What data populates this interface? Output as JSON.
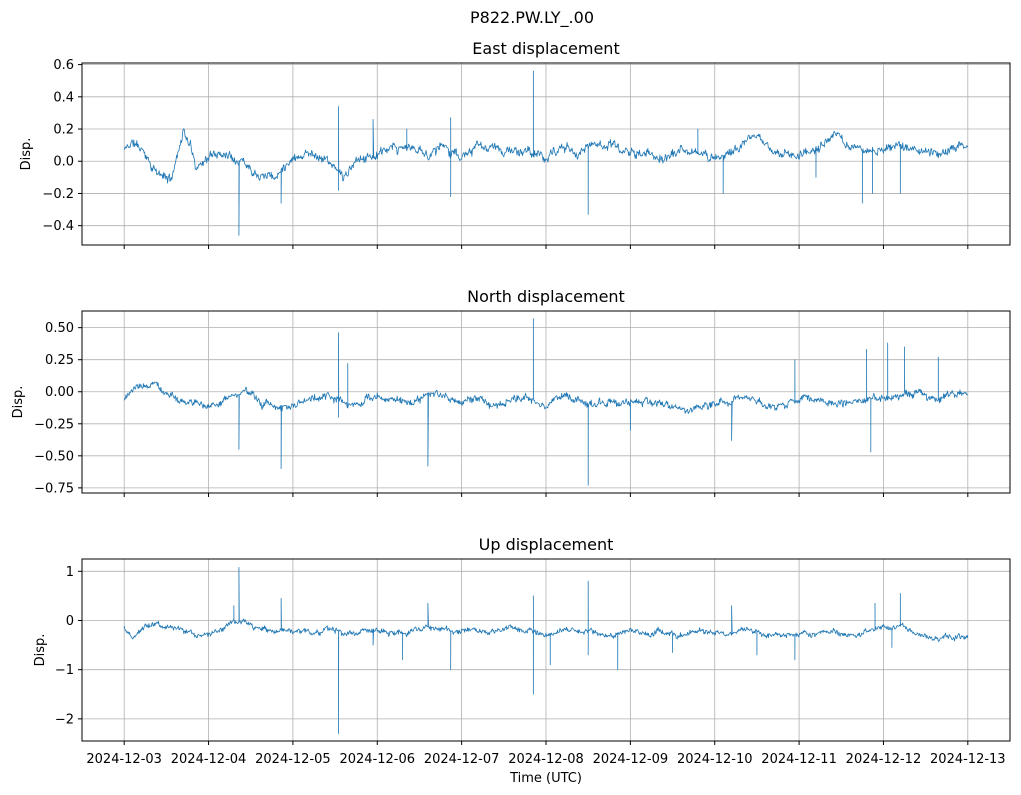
{
  "figure": {
    "suptitle": "P822.PW.LY_.00",
    "xlabel": "Time (UTC)"
  },
  "chart_data": [
    {
      "type": "line",
      "title": "East displacement",
      "ylabel": "Disp.",
      "xlim": [
        "2024-12-02T12:00:00",
        "2024-12-13T12:00:00"
      ],
      "x_range": [
        "2024-12-03T00:00:00",
        "2024-12-13T00:00:00"
      ],
      "ylim": [
        -0.52,
        0.61
      ],
      "yticks": [
        -0.4,
        -0.2,
        0.0,
        0.2,
        0.4,
        0.6
      ],
      "ytick_labels": [
        "−0.4",
        "−0.2",
        "0.0",
        "0.2",
        "0.4",
        "0.6"
      ],
      "xticks": [
        "2024-12-03",
        "2024-12-04",
        "2024-12-05",
        "2024-12-06",
        "2024-12-07",
        "2024-12-08",
        "2024-12-09",
        "2024-12-10",
        "2024-12-11",
        "2024-12-12",
        "2024-12-13"
      ],
      "show_x_tick_labels": false,
      "grid": true,
      "color": "#1f77b4",
      "series": [
        {
          "baseline": [
            [
              0.0,
              0.07
            ],
            [
              0.1,
              0.12
            ],
            [
              0.25,
              0.05
            ],
            [
              0.4,
              -0.08
            ],
            [
              0.55,
              -0.12
            ],
            [
              0.62,
              0.02
            ],
            [
              0.7,
              0.2
            ],
            [
              0.78,
              0.1
            ],
            [
              0.85,
              -0.02
            ],
            [
              1.0,
              0.03
            ],
            [
              1.2,
              0.06
            ],
            [
              1.4,
              0.02
            ],
            [
              1.55,
              -0.05
            ],
            [
              1.7,
              -0.06
            ],
            [
              1.8,
              -0.1
            ],
            [
              1.9,
              -0.02
            ],
            [
              2.0,
              0.04
            ],
            [
              2.2,
              0.06
            ],
            [
              2.4,
              0.02
            ],
            [
              2.5,
              -0.05
            ],
            [
              2.6,
              -0.1
            ],
            [
              2.7,
              -0.05
            ],
            [
              2.8,
              0.02
            ],
            [
              3.0,
              0.04
            ],
            [
              3.2,
              0.06
            ],
            [
              3.4,
              0.08
            ],
            [
              3.6,
              0.04
            ],
            [
              3.75,
              0.1
            ],
            [
              3.9,
              0.07
            ],
            [
              4.0,
              0.02
            ],
            [
              4.2,
              0.08
            ],
            [
              4.4,
              0.07
            ],
            [
              4.6,
              0.06
            ],
            [
              4.8,
              0.05
            ],
            [
              5.0,
              0.02
            ],
            [
              5.2,
              0.08
            ],
            [
              5.4,
              0.06
            ],
            [
              5.6,
              0.12
            ],
            [
              5.8,
              0.1
            ],
            [
              6.0,
              0.05
            ],
            [
              6.2,
              0.04
            ],
            [
              6.4,
              0.02
            ],
            [
              6.6,
              0.06
            ],
            [
              6.8,
              0.04
            ],
            [
              7.0,
              0.03
            ],
            [
              7.2,
              0.06
            ],
            [
              7.4,
              0.14
            ],
            [
              7.6,
              0.1
            ],
            [
              7.8,
              0.04
            ],
            [
              8.0,
              0.05
            ],
            [
              8.2,
              0.08
            ],
            [
              8.4,
              0.14
            ],
            [
              8.6,
              0.1
            ],
            [
              8.8,
              0.07
            ],
            [
              9.0,
              0.06
            ],
            [
              9.2,
              0.1
            ],
            [
              9.4,
              0.06
            ],
            [
              9.6,
              0.04
            ],
            [
              9.8,
              0.08
            ],
            [
              10.0,
              0.12
            ]
          ],
          "spikes": [
            [
              1.36,
              -0.46
            ],
            [
              1.36,
              -0.25
            ],
            [
              1.86,
              -0.26
            ],
            [
              2.54,
              0.34
            ],
            [
              2.54,
              -0.18
            ],
            [
              2.95,
              0.26
            ],
            [
              3.35,
              0.2
            ],
            [
              3.87,
              0.27
            ],
            [
              3.87,
              -0.22
            ],
            [
              4.85,
              0.56
            ],
            [
              4.85,
              0.3
            ],
            [
              5.5,
              -0.33
            ],
            [
              6.8,
              0.2
            ],
            [
              7.1,
              -0.2
            ],
            [
              8.2,
              -0.1
            ],
            [
              8.75,
              -0.26
            ],
            [
              8.87,
              -0.2
            ],
            [
              9.2,
              -0.2
            ]
          ],
          "noise": 0.025,
          "seed": 11
        }
      ]
    },
    {
      "type": "line",
      "title": "North displacement",
      "ylabel": "Disp.",
      "xlim": [
        "2024-12-02T12:00:00",
        "2024-12-13T12:00:00"
      ],
      "x_range": [
        "2024-12-03T00:00:00",
        "2024-12-13T00:00:00"
      ],
      "ylim": [
        -0.79,
        0.63
      ],
      "yticks": [
        -0.75,
        -0.5,
        -0.25,
        0.0,
        0.25,
        0.5
      ],
      "ytick_labels": [
        "−0.75",
        "−0.50",
        "−0.25",
        "0.00",
        "0.25",
        "0.50"
      ],
      "xticks": [
        "2024-12-03",
        "2024-12-04",
        "2024-12-05",
        "2024-12-06",
        "2024-12-07",
        "2024-12-08",
        "2024-12-09",
        "2024-12-10",
        "2024-12-11",
        "2024-12-12",
        "2024-12-13"
      ],
      "show_x_tick_labels": false,
      "grid": true,
      "color": "#1f77b4",
      "series": [
        {
          "baseline": [
            [
              0.0,
              -0.04
            ],
            [
              0.2,
              0.03
            ],
            [
              0.4,
              0.06
            ],
            [
              0.6,
              -0.05
            ],
            [
              0.8,
              -0.1
            ],
            [
              1.0,
              -0.1
            ],
            [
              1.2,
              -0.05
            ],
            [
              1.4,
              0.0
            ],
            [
              1.6,
              -0.08
            ],
            [
              1.8,
              -0.12
            ],
            [
              2.0,
              -0.1
            ],
            [
              2.2,
              -0.05
            ],
            [
              2.4,
              -0.02
            ],
            [
              2.6,
              -0.1
            ],
            [
              2.8,
              -0.08
            ],
            [
              3.0,
              -0.06
            ],
            [
              3.2,
              -0.04
            ],
            [
              3.4,
              -0.08
            ],
            [
              3.6,
              -0.05
            ],
            [
              3.8,
              -0.02
            ],
            [
              4.0,
              -0.08
            ],
            [
              4.2,
              -0.06
            ],
            [
              4.4,
              -0.1
            ],
            [
              4.6,
              -0.04
            ],
            [
              4.8,
              -0.05
            ],
            [
              5.0,
              -0.08
            ],
            [
              5.2,
              -0.04
            ],
            [
              5.4,
              -0.08
            ],
            [
              5.6,
              -0.1
            ],
            [
              5.8,
              -0.05
            ],
            [
              6.0,
              -0.08
            ],
            [
              6.2,
              -0.06
            ],
            [
              6.4,
              -0.1
            ],
            [
              6.6,
              -0.14
            ],
            [
              6.8,
              -0.12
            ],
            [
              7.0,
              -0.08
            ],
            [
              7.2,
              -0.06
            ],
            [
              7.4,
              -0.04
            ],
            [
              7.6,
              -0.1
            ],
            [
              7.8,
              -0.12
            ],
            [
              8.0,
              -0.06
            ],
            [
              8.2,
              -0.04
            ],
            [
              8.4,
              -0.08
            ],
            [
              8.6,
              -0.1
            ],
            [
              8.8,
              -0.06
            ],
            [
              9.0,
              -0.04
            ],
            [
              9.2,
              -0.02
            ],
            [
              9.4,
              0.0
            ],
            [
              9.6,
              -0.06
            ],
            [
              9.8,
              -0.04
            ],
            [
              10.0,
              -0.02
            ]
          ],
          "spikes": [
            [
              1.36,
              -0.45
            ],
            [
              1.86,
              -0.6
            ],
            [
              2.54,
              0.46
            ],
            [
              2.54,
              -0.2
            ],
            [
              2.65,
              0.22
            ],
            [
              3.6,
              -0.58
            ],
            [
              3.6,
              -0.2
            ],
            [
              4.85,
              0.57
            ],
            [
              4.85,
              0.35
            ],
            [
              5.5,
              -0.73
            ],
            [
              5.5,
              -0.25
            ],
            [
              6.0,
              -0.3
            ],
            [
              7.2,
              -0.38
            ],
            [
              7.95,
              0.25
            ],
            [
              8.8,
              0.33
            ],
            [
              8.85,
              -0.47
            ],
            [
              9.05,
              0.38
            ],
            [
              9.25,
              0.35
            ],
            [
              9.65,
              0.27
            ]
          ],
          "noise": 0.025,
          "seed": 23
        }
      ]
    },
    {
      "type": "line",
      "title": "Up displacement",
      "ylabel": "Disp.",
      "xlim": [
        "2024-12-02T12:00:00",
        "2024-12-13T12:00:00"
      ],
      "x_range": [
        "2024-12-03T00:00:00",
        "2024-12-13T00:00:00"
      ],
      "ylim": [
        -2.45,
        1.25
      ],
      "yticks": [
        -2,
        -1,
        0,
        1
      ],
      "ytick_labels": [
        "−2",
        "−1",
        "0",
        "1"
      ],
      "xticks": [
        "2024-12-03",
        "2024-12-04",
        "2024-12-05",
        "2024-12-06",
        "2024-12-07",
        "2024-12-08",
        "2024-12-09",
        "2024-12-10",
        "2024-12-11",
        "2024-12-12",
        "2024-12-13"
      ],
      "xtick_labels": [
        "2024-12-03",
        "2024-12-04",
        "2024-12-05",
        "2024-12-06",
        "2024-12-07",
        "2024-12-08",
        "2024-12-09",
        "2024-12-10",
        "2024-12-11",
        "2024-12-12",
        "2024-12-13"
      ],
      "show_x_tick_labels": true,
      "grid": true,
      "color": "#1f77b4",
      "series": [
        {
          "baseline": [
            [
              0.0,
              -0.15
            ],
            [
              0.1,
              -0.35
            ],
            [
              0.25,
              -0.1
            ],
            [
              0.4,
              0.0
            ],
            [
              0.6,
              -0.15
            ],
            [
              0.8,
              -0.3
            ],
            [
              1.0,
              -0.25
            ],
            [
              1.2,
              -0.15
            ],
            [
              1.4,
              -0.05
            ],
            [
              1.6,
              -0.2
            ],
            [
              1.8,
              -0.25
            ],
            [
              2.0,
              -0.2
            ],
            [
              2.2,
              -0.25
            ],
            [
              2.4,
              -0.15
            ],
            [
              2.6,
              -0.25
            ],
            [
              2.8,
              -0.2
            ],
            [
              3.0,
              -0.2
            ],
            [
              3.2,
              -0.25
            ],
            [
              3.4,
              -0.2
            ],
            [
              3.6,
              -0.15
            ],
            [
              3.8,
              -0.2
            ],
            [
              4.0,
              -0.25
            ],
            [
              4.2,
              -0.2
            ],
            [
              4.4,
              -0.22
            ],
            [
              4.6,
              -0.15
            ],
            [
              4.8,
              -0.2
            ],
            [
              5.0,
              -0.3
            ],
            [
              5.2,
              -0.2
            ],
            [
              5.4,
              -0.25
            ],
            [
              5.6,
              -0.2
            ],
            [
              5.8,
              -0.25
            ],
            [
              6.0,
              -0.2
            ],
            [
              6.2,
              -0.25
            ],
            [
              6.4,
              -0.2
            ],
            [
              6.6,
              -0.25
            ],
            [
              6.8,
              -0.2
            ],
            [
              7.0,
              -0.28
            ],
            [
              7.2,
              -0.25
            ],
            [
              7.4,
              -0.2
            ],
            [
              7.6,
              -0.3
            ],
            [
              7.8,
              -0.25
            ],
            [
              8.0,
              -0.2
            ],
            [
              8.2,
              -0.25
            ],
            [
              8.4,
              -0.25
            ],
            [
              8.6,
              -0.3
            ],
            [
              8.8,
              -0.25
            ],
            [
              9.0,
              -0.2
            ],
            [
              9.2,
              -0.1
            ],
            [
              9.4,
              -0.3
            ],
            [
              9.6,
              -0.35
            ],
            [
              9.8,
              -0.3
            ],
            [
              10.0,
              -0.35
            ]
          ],
          "spikes": [
            [
              1.36,
              1.08
            ],
            [
              1.3,
              0.3
            ],
            [
              1.86,
              0.45
            ],
            [
              2.54,
              -2.3
            ],
            [
              2.54,
              -1.0
            ],
            [
              2.95,
              -0.5
            ],
            [
              3.3,
              -0.8
            ],
            [
              3.6,
              0.35
            ],
            [
              3.87,
              -1.0
            ],
            [
              4.85,
              -1.5
            ],
            [
              4.85,
              0.5
            ],
            [
              5.05,
              -0.9
            ],
            [
              5.5,
              0.8
            ],
            [
              5.5,
              -0.7
            ],
            [
              5.85,
              -1.0
            ],
            [
              6.5,
              -0.65
            ],
            [
              7.2,
              0.3
            ],
            [
              7.5,
              -0.7
            ],
            [
              7.95,
              -0.8
            ],
            [
              8.9,
              0.35
            ],
            [
              9.2,
              0.55
            ],
            [
              9.1,
              -0.55
            ]
          ],
          "noise": 0.05,
          "seed": 37
        }
      ]
    }
  ]
}
